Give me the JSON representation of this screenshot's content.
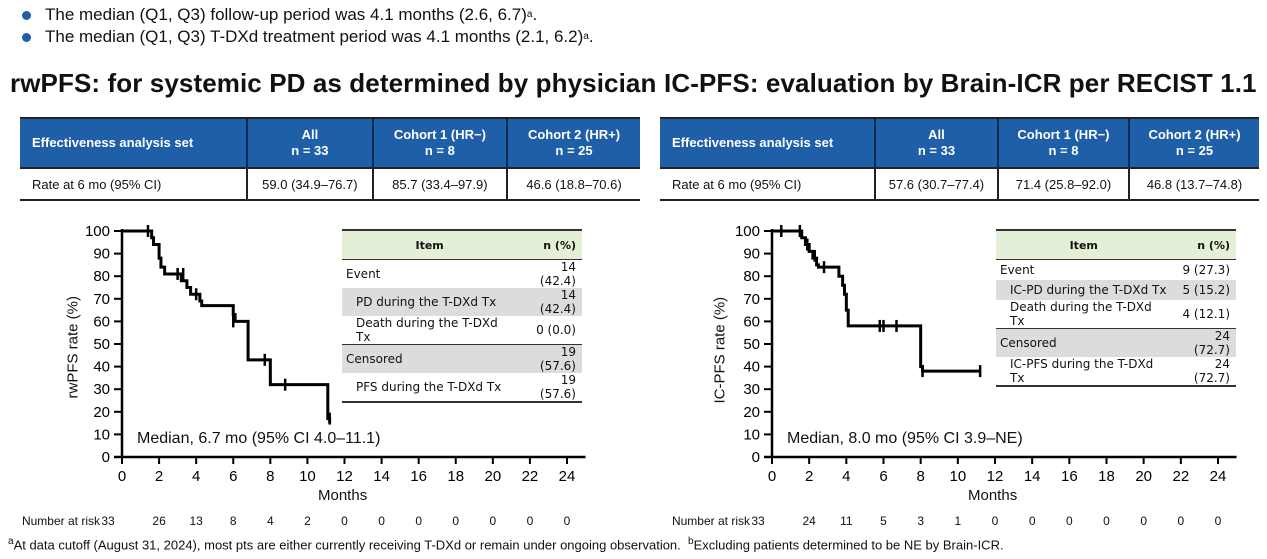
{
  "bullets": [
    {
      "text": "The median (Q1, Q3) follow-up period was 4.1 months (2.6, 6.7)",
      "sup": "a",
      "end": "."
    },
    {
      "text": "The median (Q1, Q3) T-DXd treatment period was 4.1 months (2.1, 6.2)",
      "sup": "a",
      "end": "."
    }
  ],
  "colors": {
    "header_blue": "#1f5fa8",
    "item_header_green": "#e3efd6",
    "row_gray": "#dcdcdc",
    "curve": "#000000"
  },
  "panels": [
    {
      "title": "rwPFS: for systemic PD as determined by physician",
      "table": {
        "headers": [
          "Effectiveness analysis set",
          "All\nn = 33",
          "Cohort 1 (HR−)\nn = 8",
          "Cohort 2 (HR+)\nn = 25"
        ],
        "header_lines": [
          [
            "Effectiveness analysis set"
          ],
          [
            "All",
            "n = 33"
          ],
          [
            "Cohort 1 (HR−)",
            "n = 8"
          ],
          [
            "Cohort 2 (HR+)",
            "n = 25"
          ]
        ],
        "row": [
          "Rate at 6 mo (95% CI)",
          "59.0 (34.9–76.7)",
          "85.7 (33.4–97.9)",
          "46.6 (18.8–70.6)"
        ]
      },
      "items": {
        "headers": [
          "Item",
          "n (%)"
        ],
        "rows": [
          {
            "label": "Event",
            "n": "14 (42.4)",
            "indent": false,
            "gray": false
          },
          {
            "label": "PD during the T-DXd Tx",
            "n": "14 (42.4)",
            "indent": true,
            "gray": true
          },
          {
            "label": "Death during the T-DXd Tx",
            "n": "0 (0.0)",
            "indent": true,
            "gray": false
          },
          {
            "label": "Censored",
            "n": "19 (57.6)",
            "indent": false,
            "gray": true
          },
          {
            "label": "PFS during the T-DXd Tx",
            "n": "19 (57.6)",
            "indent": true,
            "gray": false
          }
        ]
      },
      "median_text": "Median, 6.7 mo (95% CI 4.0–11.1)",
      "risk_label": "Number at risk",
      "risk": [
        33,
        26,
        13,
        8,
        4,
        2,
        0,
        0,
        0,
        0,
        0,
        0,
        0
      ]
    },
    {
      "title": "IC-PFS: evaluation by Brain-ICR per RECIST 1.1",
      "table": {
        "header_lines": [
          [
            "Effectiveness analysis set"
          ],
          [
            "All",
            "n = 33"
          ],
          [
            "Cohort 1 (HR−)",
            "n = 8"
          ],
          [
            "Cohort 2 (HR+)",
            "n = 25"
          ]
        ],
        "row": [
          "Rate at 6 mo (95% CI)",
          "57.6 (30.7–77.4)",
          "71.4 (25.8–92.0)",
          "46.8 (13.7–74.8)"
        ]
      },
      "items": {
        "headers": [
          "Item",
          "n (%)"
        ],
        "rows": [
          {
            "label": "Event",
            "n": "9 (27.3)",
            "indent": false,
            "gray": false
          },
          {
            "label": "IC-PD during the T-DXd Tx",
            "n": "5 (15.2)",
            "indent": true,
            "gray": true
          },
          {
            "label": "Death during the T-DXd Tx",
            "n": "4 (12.1)",
            "indent": true,
            "gray": false
          },
          {
            "label": "Censored",
            "n": "24 (72.7)",
            "indent": false,
            "gray": true
          },
          {
            "label": "IC-PFS during the T-DXd Tx",
            "n": "24 (72.7)",
            "indent": true,
            "gray": false
          }
        ]
      },
      "median_text": "Median, 8.0 mo (95% CI 3.9–NE)",
      "risk_label": "Number at risk",
      "risk": [
        33,
        24,
        11,
        5,
        3,
        1,
        0,
        0,
        0,
        0,
        0,
        0,
        0
      ]
    }
  ],
  "chart_data": [
    {
      "type": "line",
      "title": "rwPFS: for systemic PD as determined by physician",
      "xlabel": "Months",
      "ylabel": "rwPFS rate (%)",
      "xlim": [
        0,
        24
      ],
      "ylim": [
        0,
        100
      ],
      "xticks": [
        0,
        2,
        4,
        6,
        8,
        10,
        12,
        14,
        16,
        18,
        20,
        22,
        24
      ],
      "yticks": [
        0,
        10,
        20,
        30,
        40,
        50,
        60,
        70,
        80,
        90,
        100
      ],
      "grid": false,
      "steps": [
        [
          0,
          100
        ],
        [
          1.5,
          100
        ],
        [
          1.6,
          97
        ],
        [
          1.7,
          94
        ],
        [
          2.0,
          88
        ],
        [
          2.1,
          84
        ],
        [
          2.3,
          81
        ],
        [
          3.2,
          78
        ],
        [
          3.5,
          75
        ],
        [
          3.7,
          72
        ],
        [
          4.2,
          69
        ],
        [
          4.3,
          67
        ],
        [
          6.0,
          63
        ],
        [
          6.1,
          60
        ],
        [
          6.8,
          43
        ],
        [
          8.0,
          32
        ],
        [
          11.1,
          17
        ],
        [
          11.2,
          15
        ]
      ],
      "end_x": 11.2,
      "censors": [
        [
          1.4,
          100
        ],
        [
          3.0,
          81
        ],
        [
          3.3,
          81
        ],
        [
          4.0,
          72
        ],
        [
          6.0,
          60
        ],
        [
          7.7,
          43
        ],
        [
          8.8,
          32
        ],
        [
          11.2,
          17
        ]
      ],
      "median": {
        "value": 6.7,
        "ci": "4.0–11.1",
        "unit": "mo"
      }
    },
    {
      "type": "line",
      "title": "IC-PFS: evaluation by Brain-ICR per RECIST 1.1",
      "xlabel": "Months",
      "ylabel": "IC-PFS rate (%)",
      "xlim": [
        0,
        24
      ],
      "ylim": [
        0,
        100
      ],
      "xticks": [
        0,
        2,
        4,
        6,
        8,
        10,
        12,
        14,
        16,
        18,
        20,
        22,
        24
      ],
      "yticks": [
        0,
        10,
        20,
        30,
        40,
        50,
        60,
        70,
        80,
        90,
        100
      ],
      "grid": false,
      "steps": [
        [
          0,
          100
        ],
        [
          1.5,
          100
        ],
        [
          1.6,
          97
        ],
        [
          1.8,
          94
        ],
        [
          2.0,
          91
        ],
        [
          2.2,
          88
        ],
        [
          2.4,
          85
        ],
        [
          2.5,
          84
        ],
        [
          3.6,
          80
        ],
        [
          3.8,
          76
        ],
        [
          3.9,
          72
        ],
        [
          4.0,
          65
        ],
        [
          4.1,
          58
        ],
        [
          8.0,
          40
        ],
        [
          8.1,
          38
        ]
      ],
      "end_x": 11.2,
      "censors": [
        [
          0.5,
          100
        ],
        [
          1.5,
          100
        ],
        [
          1.9,
          94
        ],
        [
          2.3,
          89
        ],
        [
          2.8,
          84
        ],
        [
          5.8,
          58
        ],
        [
          6.0,
          58
        ],
        [
          6.7,
          58
        ],
        [
          8.1,
          38
        ],
        [
          11.2,
          38
        ]
      ],
      "median": {
        "value": 8.0,
        "ci": "3.9–NE",
        "unit": "mo"
      }
    }
  ],
  "footnote": {
    "a_sup": "a",
    "a_text": "At data cutoff (August 31, 2024), most pts are either currently receiving T-DXd or remain under ongoing observation.",
    "b_sup": "b",
    "b_text": "Excluding patients determined to be NE by Brain-ICR."
  }
}
